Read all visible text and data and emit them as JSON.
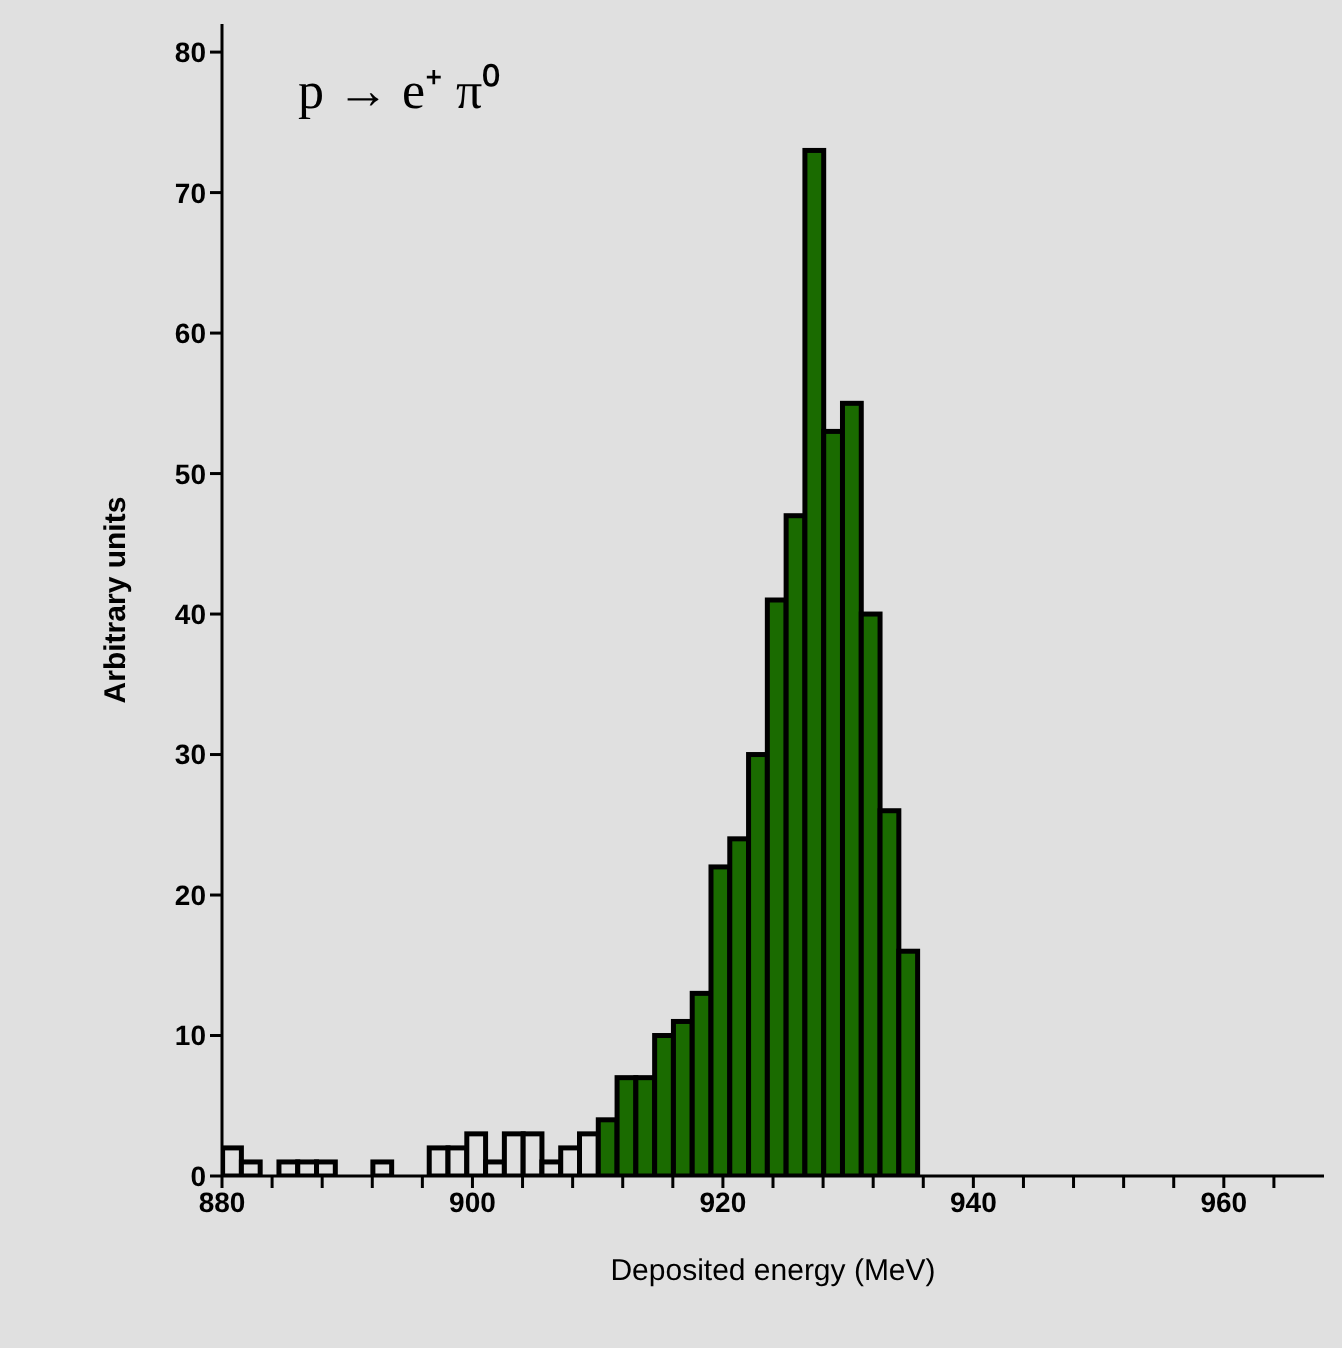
{
  "chart_data": {
    "type": "histogram",
    "xlabel": "Deposited energy  (MeV)",
    "ylabel": "Arbitrary units",
    "annotations": [
      "p → e⁺ π⁰"
    ],
    "bins": [
      880,
      881.5,
      883,
      884.5,
      886,
      887.5,
      889,
      890.5,
      892,
      893.5,
      895,
      896.5,
      898,
      899.5,
      901,
      902.5,
      904,
      905.5,
      907,
      908.5,
      910,
      911.5,
      913,
      914.5,
      916,
      917.5,
      919,
      920.5,
      922,
      923.5,
      925,
      926.5,
      928,
      929.5,
      931,
      932.5,
      934,
      935.5
    ],
    "values": [
      2,
      1,
      0,
      1,
      1,
      1,
      0,
      0,
      1,
      0,
      0,
      2,
      2,
      3,
      1,
      3,
      3,
      1,
      2,
      3,
      4,
      7,
      7,
      10,
      11,
      13,
      22,
      24,
      30,
      41,
      47,
      73,
      53,
      55,
      40,
      26,
      16
    ],
    "colors": [
      "#e0e0e0",
      "#e0e0e0",
      "#e0e0e0",
      "#e0e0e0",
      "#e0e0e0",
      "#e0e0e0",
      "#e0e0e0",
      "#e0e0e0",
      "#e0e0e0",
      "#e0e0e0",
      "#e0e0e0",
      "#e0e0e0",
      "#e0e0e0",
      "#e0e0e0",
      "#e0e0e0",
      "#e0e0e0",
      "#e0e0e0",
      "#e0e0e0",
      "#e0e0e0",
      "#e0e0e0",
      "#1a6b00",
      "#1a6b00",
      "#1a6b00",
      "#1a6b00",
      "#1a6b00",
      "#1a6b00",
      "#1a6b00",
      "#1a6b00",
      "#1a6b00",
      "#1a6b00",
      "#1a6b00",
      "#1a6b00",
      "#1a6b00",
      "#1a6b00",
      "#1a6b00",
      "#1a6b00",
      "#1a6b00"
    ],
    "xlim": [
      880,
      968
    ],
    "xticks": [
      880,
      {
        "value": 884,
        "label": null
      },
      {
        "value": 888,
        "label": null
      },
      {
        "value": 892,
        "label": null
      },
      {
        "value": 896,
        "label": null
      },
      900,
      {
        "value": 904,
        "label": null
      },
      {
        "value": 908,
        "label": null
      },
      {
        "value": 912,
        "label": null
      },
      {
        "value": 916,
        "label": null
      },
      920,
      {
        "value": 924,
        "label": null
      },
      {
        "value": 928,
        "label": null
      },
      {
        "value": 932,
        "label": null
      },
      {
        "value": 936,
        "label": null
      },
      940,
      {
        "value": 944,
        "label": null
      },
      {
        "value": 948,
        "label": null
      },
      {
        "value": 952,
        "label": null
      },
      {
        "value": 956,
        "label": null
      },
      960,
      {
        "value": 964,
        "label": null
      }
    ],
    "ylim": [
      0,
      82
    ],
    "yticks": [
      0,
      10,
      20,
      30,
      40,
      50,
      60,
      70,
      80
    ],
    "grid": false,
    "legend": false
  }
}
